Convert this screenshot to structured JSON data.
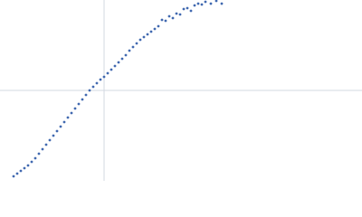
{
  "chart_data": {
    "type": "scatter",
    "x": [
      15,
      19,
      23,
      27,
      31,
      35,
      39,
      43,
      47,
      51,
      55,
      59,
      63,
      67,
      71,
      75,
      79,
      83,
      87,
      91,
      95,
      99,
      103,
      107,
      111,
      115,
      119,
      123,
      127,
      131,
      135,
      139,
      143,
      147,
      151,
      155,
      159,
      163,
      167,
      171,
      175,
      179,
      183,
      187,
      191,
      195,
      199,
      203,
      207,
      211,
      215,
      219,
      223,
      227,
      233,
      239,
      245
    ],
    "y": [
      5,
      8,
      11,
      14,
      17,
      21,
      25,
      30,
      35,
      40,
      45,
      50,
      55,
      60,
      65,
      70,
      75,
      80,
      85,
      90,
      95,
      100,
      104,
      108,
      112,
      115,
      119,
      123,
      127,
      131,
      135,
      139,
      144,
      148,
      152,
      156,
      159,
      162,
      165,
      168,
      171,
      178,
      177,
      182,
      180,
      185,
      184,
      190,
      191,
      188,
      194,
      196,
      195,
      198,
      196,
      199,
      196
    ],
    "color": "#4169b0",
    "xlim": [
      0,
      400
    ],
    "ylim": [
      0,
      200
    ],
    "xticks": [
      115
    ],
    "yticks": [
      100
    ],
    "grid": true,
    "tick_labels": false
  }
}
